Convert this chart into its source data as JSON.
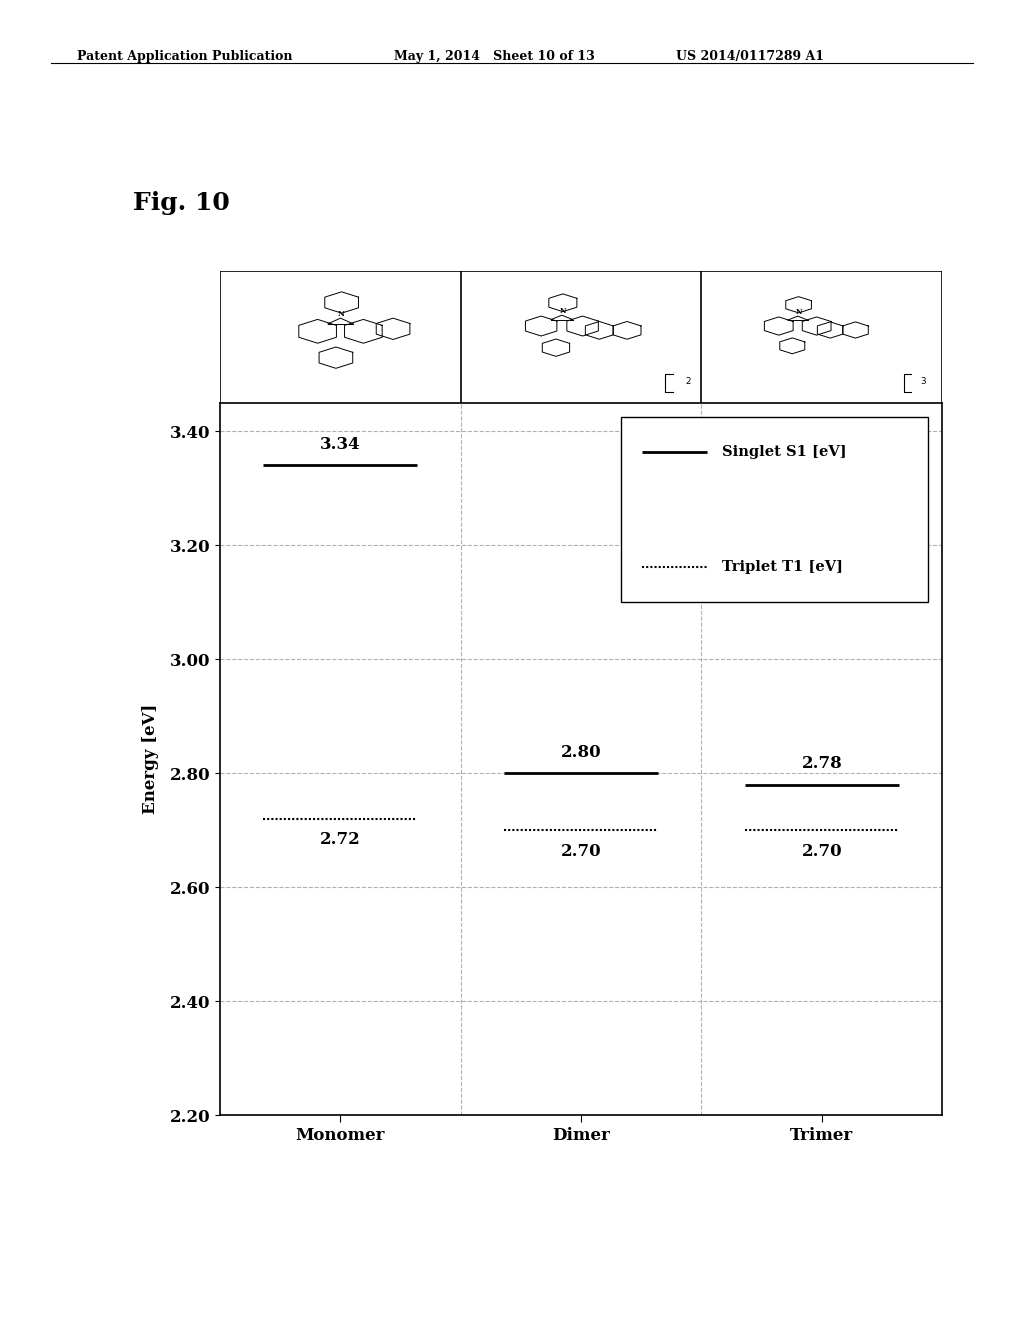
{
  "title": "Fig. 10",
  "ylabel": "Energy [eV]",
  "xlabel_categories": [
    "Monomer",
    "Dimer",
    "Trimer"
  ],
  "ylim": [
    2.2,
    3.45
  ],
  "yticks": [
    2.2,
    2.4,
    2.6,
    2.8,
    3.0,
    3.2,
    3.4
  ],
  "singlet_values": [
    3.34,
    2.8,
    2.78
  ],
  "triplet_values": [
    2.72,
    2.7,
    2.7
  ],
  "legend_singlet_label": "Singlet S1 [eV]",
  "legend_triplet_label": "Triplet T1 [eV]",
  "background_color": "#ffffff",
  "line_color": "#000000",
  "grid_color": "#b0b0b0",
  "annotation_fontsize": 12,
  "axis_fontsize": 12,
  "label_fontsize": 12,
  "title_fontsize": 18,
  "header_fontsize": 9,
  "header_left": "Patent Application Publication",
  "header_mid": "May 1, 2014   Sheet 10 of 13",
  "header_right": "US 2014/0117289 A1"
}
